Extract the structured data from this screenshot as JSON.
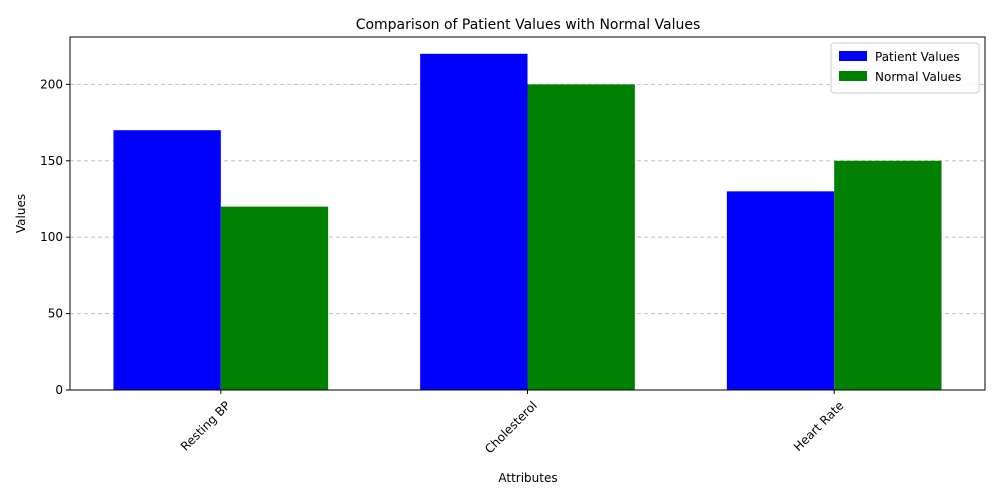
{
  "chart_data": {
    "type": "bar",
    "title": "Comparison of Patient Values with Normal Values",
    "xlabel": "Attributes",
    "ylabel": "Values",
    "categories": [
      "Resting BP",
      "Cholesterol",
      "Heart Rate"
    ],
    "series": [
      {
        "name": "Patient Values",
        "values": [
          170,
          220,
          130
        ],
        "color": "#0000ff"
      },
      {
        "name": "Normal Values",
        "values": [
          120,
          200,
          150
        ],
        "color": "#008000"
      }
    ],
    "ylim": [
      0,
      231
    ],
    "yticks": [
      0,
      50,
      100,
      150,
      200
    ],
    "ytick_labels": [
      "0",
      "50",
      "100",
      "150",
      "200"
    ],
    "grid": "y-dashed",
    "grid_color": "#c0c0c0",
    "legend_position": "top-right",
    "xtick_rotation_deg": 45
  }
}
